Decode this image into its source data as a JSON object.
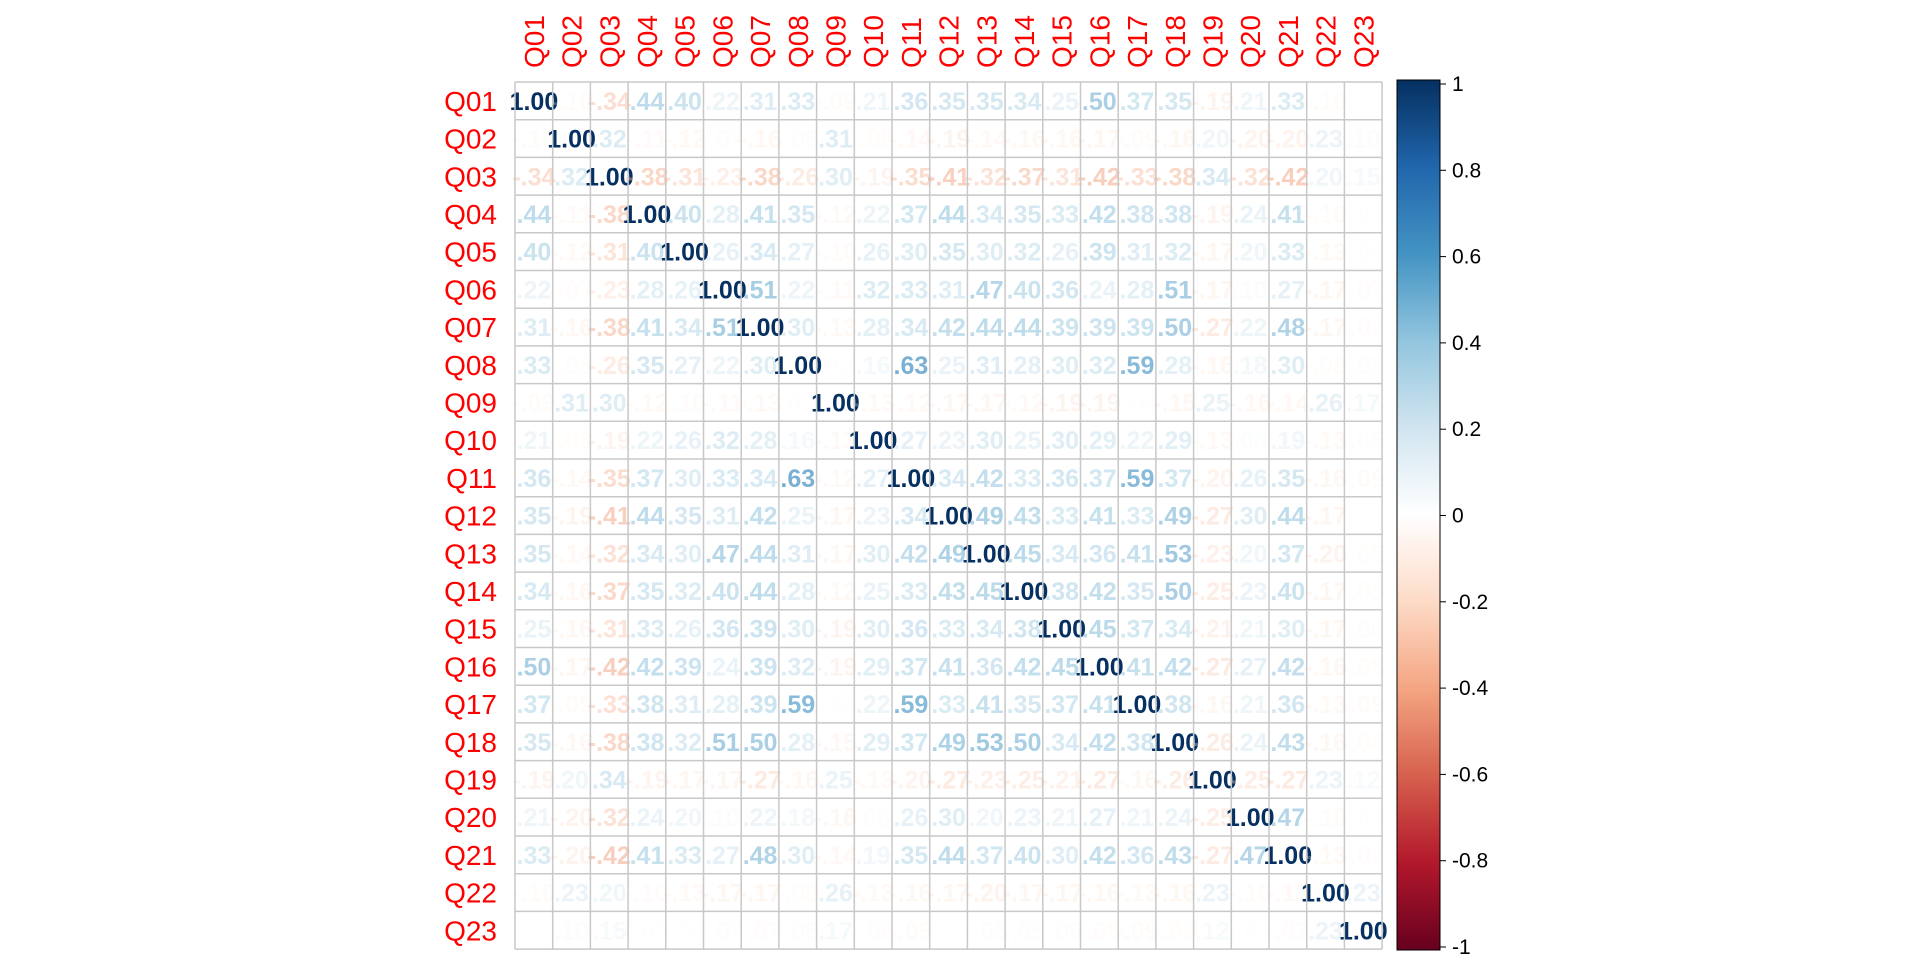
{
  "chart_data": {
    "type": "heatmap",
    "variables": [
      "Q01",
      "Q02",
      "Q03",
      "Q04",
      "Q05",
      "Q06",
      "Q07",
      "Q08",
      "Q09",
      "Q10",
      "Q11",
      "Q12",
      "Q13",
      "Q14",
      "Q15",
      "Q16",
      "Q17",
      "Q18",
      "Q19",
      "Q20",
      "Q21",
      "Q22",
      "Q23"
    ],
    "matrix": [
      [
        1.0,
        -0.1,
        -0.34,
        0.44,
        0.4,
        0.22,
        0.31,
        0.33,
        -0.09,
        0.21,
        0.36,
        0.35,
        0.35,
        0.34,
        0.25,
        0.5,
        0.37,
        0.35,
        -0.19,
        0.21,
        0.33,
        -0.1,
        0.0
      ],
      [
        -0.1,
        1.0,
        0.32,
        -0.11,
        -0.12,
        -0.07,
        -0.16,
        -0.05,
        0.31,
        -0.08,
        -0.14,
        -0.19,
        -0.14,
        -0.16,
        -0.16,
        -0.17,
        -0.09,
        -0.16,
        0.2,
        -0.2,
        -0.2,
        0.23,
        0.1
      ],
      [
        -0.34,
        0.32,
        1.0,
        -0.38,
        -0.31,
        -0.23,
        -0.38,
        -0.26,
        0.3,
        -0.19,
        -0.35,
        -0.41,
        -0.32,
        -0.37,
        -0.31,
        -0.42,
        -0.33,
        -0.38,
        0.34,
        -0.32,
        -0.42,
        0.2,
        0.15
      ],
      [
        0.44,
        -0.11,
        -0.38,
        1.0,
        0.4,
        0.28,
        0.41,
        0.35,
        -0.12,
        0.22,
        0.37,
        0.44,
        0.34,
        0.35,
        0.33,
        0.42,
        0.38,
        0.38,
        -0.19,
        0.24,
        0.41,
        -0.1,
        -0.03
      ],
      [
        0.4,
        -0.12,
        -0.31,
        0.4,
        1.0,
        0.26,
        0.34,
        0.27,
        -0.1,
        0.26,
        0.3,
        0.35,
        0.3,
        0.32,
        0.26,
        0.39,
        0.31,
        0.32,
        -0.17,
        0.2,
        0.33,
        -0.13,
        -0.04
      ],
      [
        0.22,
        -0.07,
        -0.23,
        0.28,
        0.26,
        1.0,
        0.51,
        0.22,
        -0.11,
        0.32,
        0.33,
        0.31,
        0.47,
        0.4,
        0.36,
        0.24,
        0.28,
        0.51,
        -0.17,
        0.1,
        0.27,
        -0.17,
        -0.07
      ],
      [
        0.31,
        -0.16,
        -0.38,
        0.41,
        0.34,
        0.51,
        1.0,
        0.3,
        -0.13,
        0.28,
        0.34,
        0.42,
        0.44,
        0.44,
        0.39,
        0.39,
        0.39,
        0.5,
        -0.27,
        0.22,
        0.48,
        -0.17,
        -0.07
      ],
      [
        0.33,
        -0.05,
        -0.26,
        0.35,
        0.27,
        0.22,
        0.3,
        1.0,
        0.02,
        0.16,
        0.63,
        0.25,
        0.31,
        0.28,
        0.3,
        0.32,
        0.59,
        0.28,
        -0.16,
        0.18,
        0.3,
        -0.08,
        -0.05
      ],
      [
        -0.09,
        0.31,
        0.3,
        -0.12,
        -0.1,
        -0.11,
        -0.13,
        0.02,
        1.0,
        -0.13,
        -0.12,
        -0.17,
        -0.17,
        -0.12,
        -0.19,
        -0.19,
        -0.04,
        -0.15,
        0.25,
        -0.16,
        -0.14,
        0.26,
        0.17
      ],
      [
        0.21,
        -0.08,
        -0.19,
        0.22,
        0.26,
        0.32,
        0.28,
        0.16,
        -0.13,
        1.0,
        0.27,
        0.23,
        0.3,
        0.25,
        0.3,
        0.29,
        0.22,
        0.29,
        -0.13,
        0.08,
        0.19,
        -0.13,
        -0.06
      ],
      [
        0.36,
        -0.14,
        -0.35,
        0.37,
        0.3,
        0.33,
        0.34,
        0.63,
        -0.12,
        0.27,
        1.0,
        0.34,
        0.42,
        0.33,
        0.36,
        0.37,
        0.59,
        0.37,
        -0.2,
        0.26,
        0.35,
        -0.16,
        -0.09
      ],
      [
        0.35,
        -0.19,
        -0.41,
        0.44,
        0.35,
        0.31,
        0.42,
        0.25,
        -0.17,
        0.23,
        0.34,
        1.0,
        0.49,
        0.43,
        0.33,
        0.41,
        0.33,
        0.49,
        -0.27,
        0.3,
        0.44,
        -0.17,
        -0.01
      ],
      [
        0.35,
        -0.14,
        -0.32,
        0.34,
        0.3,
        0.47,
        0.44,
        0.31,
        -0.17,
        0.3,
        0.42,
        0.49,
        1.0,
        0.45,
        0.34,
        0.36,
        0.41,
        0.53,
        -0.23,
        0.2,
        0.37,
        -0.2,
        -0.05
      ],
      [
        0.34,
        -0.16,
        -0.37,
        0.35,
        0.32,
        0.4,
        0.44,
        0.28,
        -0.12,
        0.25,
        0.33,
        0.43,
        0.45,
        1.0,
        0.38,
        0.42,
        0.35,
        0.5,
        -0.25,
        0.23,
        0.4,
        -0.17,
        -0.05
      ],
      [
        0.25,
        -0.16,
        -0.31,
        0.33,
        0.26,
        0.36,
        0.39,
        0.3,
        -0.19,
        0.3,
        0.36,
        0.33,
        0.34,
        0.38,
        1.0,
        0.45,
        0.37,
        0.34,
        -0.21,
        0.21,
        0.3,
        -0.17,
        -0.06
      ],
      [
        0.5,
        -0.17,
        -0.42,
        0.42,
        0.39,
        0.24,
        0.39,
        0.32,
        -0.19,
        0.29,
        0.37,
        0.41,
        0.36,
        0.42,
        0.45,
        1.0,
        0.41,
        0.42,
        -0.27,
        0.27,
        0.42,
        -0.16,
        -0.08
      ],
      [
        0.37,
        -0.09,
        -0.33,
        0.38,
        0.31,
        0.28,
        0.39,
        0.59,
        -0.04,
        0.22,
        0.59,
        0.33,
        0.41,
        0.35,
        0.37,
        0.41,
        1.0,
        0.38,
        -0.16,
        0.21,
        0.36,
        -0.13,
        -0.09
      ],
      [
        0.35,
        -0.16,
        -0.38,
        0.38,
        0.32,
        0.51,
        0.5,
        0.28,
        -0.15,
        0.29,
        0.37,
        0.49,
        0.53,
        0.5,
        0.34,
        0.42,
        0.38,
        1.0,
        -0.26,
        0.24,
        0.43,
        -0.16,
        -0.08
      ],
      [
        -0.19,
        0.2,
        0.34,
        -0.19,
        -0.17,
        -0.17,
        -0.27,
        -0.16,
        0.25,
        -0.13,
        -0.2,
        -0.27,
        -0.23,
        -0.25,
        -0.21,
        -0.27,
        -0.16,
        -0.26,
        1.0,
        -0.25,
        -0.27,
        0.23,
        0.12
      ],
      [
        0.21,
        -0.2,
        -0.32,
        0.24,
        0.2,
        0.1,
        0.22,
        0.18,
        -0.16,
        0.08,
        0.26,
        0.3,
        0.2,
        0.23,
        0.21,
        0.27,
        0.21,
        0.24,
        -0.25,
        1.0,
        0.47,
        -0.1,
        -0.03
      ],
      [
        0.33,
        -0.2,
        -0.42,
        0.41,
        0.33,
        0.27,
        0.48,
        0.3,
        -0.14,
        0.19,
        0.35,
        0.44,
        0.37,
        0.4,
        0.3,
        0.42,
        0.36,
        0.43,
        -0.27,
        0.47,
        1.0,
        -0.13,
        -0.07
      ],
      [
        -0.1,
        0.23,
        0.2,
        -0.1,
        -0.13,
        -0.17,
        -0.17,
        -0.08,
        0.26,
        -0.13,
        -0.16,
        -0.17,
        -0.2,
        -0.17,
        -0.17,
        -0.16,
        -0.13,
        -0.16,
        0.23,
        -0.1,
        -0.13,
        1.0,
        0.23
      ],
      [
        0.0,
        0.1,
        0.15,
        -0.03,
        -0.04,
        -0.07,
        -0.07,
        -0.05,
        0.17,
        -0.06,
        -0.09,
        -0.01,
        -0.05,
        -0.05,
        -0.06,
        -0.08,
        -0.09,
        -0.08,
        0.12,
        -0.03,
        -0.07,
        0.23,
        1.0
      ]
    ],
    "zlim": [
      -1,
      1
    ],
    "colorbar_ticks": [
      "1",
      "0.8",
      "0.6",
      "0.4",
      "0.2",
      "0",
      "-0.2",
      "-0.4",
      "-0.6",
      "-0.8",
      "-1"
    ],
    "colors": {
      "label": "#ff0000",
      "grid": "#c8c8c8",
      "negative_end": "#67001f",
      "positive_end": "#053061"
    }
  }
}
